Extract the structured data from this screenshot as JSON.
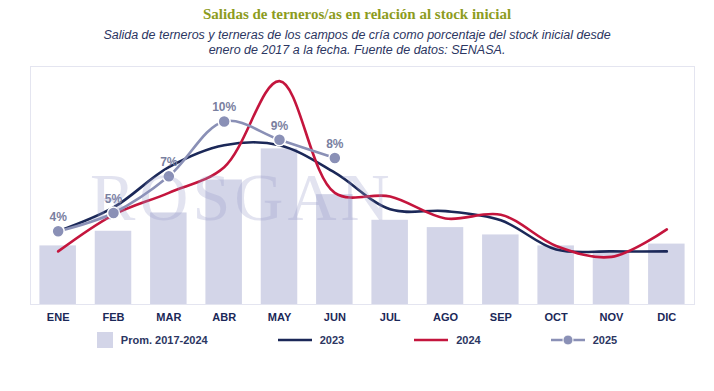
{
  "chart_data": {
    "type": "bar",
    "title": "Salidas de terneros/as en relación al stock inicial",
    "subtitle": "Salida de terneros y terneras de los campos de cría como porcentaje del stock inicial desde enero de 2017 a la fecha. Fuente de datos: SENASA.",
    "watermark": "ROSGAN",
    "categories": [
      "ENE",
      "FEB",
      "MAR",
      "ABR",
      "MAY",
      "JUN",
      "JUL",
      "AGO",
      "SEP",
      "OCT",
      "NOV",
      "DIC"
    ],
    "series": [
      {
        "name": "Prom. 2017-2024",
        "type": "bar",
        "color": "#d3d5e8",
        "values": [
          3.2,
          4.0,
          5.0,
          6.8,
          8.5,
          6.0,
          4.6,
          4.2,
          3.8,
          3.2,
          2.8,
          3.3
        ]
      },
      {
        "name": "2023",
        "type": "line",
        "color": "#1b2858",
        "values": [
          4.0,
          5.3,
          7.5,
          8.7,
          8.7,
          7.2,
          5.2,
          5.1,
          4.6,
          3.0,
          2.9,
          2.9
        ]
      },
      {
        "name": "2024",
        "type": "line",
        "color": "#c4153d",
        "values": [
          2.9,
          4.9,
          6.1,
          7.5,
          12.2,
          6.1,
          5.9,
          4.7,
          4.9,
          3.2,
          2.6,
          4.1
        ]
      },
      {
        "name": "2025",
        "type": "line",
        "color": "#8a90b6",
        "marker": "circle",
        "values": [
          4,
          5,
          7,
          10,
          9,
          8,
          null,
          null,
          null,
          null,
          null,
          null
        ],
        "data_labels": true,
        "value_labels": [
          "4%",
          "5%",
          "7%",
          "10%",
          "9%",
          "8%",
          null,
          null,
          null,
          null,
          null,
          null
        ]
      }
    ],
    "ylim": [
      0,
      13
    ],
    "yticks": [],
    "tick_labels": "x",
    "grid": false
  }
}
